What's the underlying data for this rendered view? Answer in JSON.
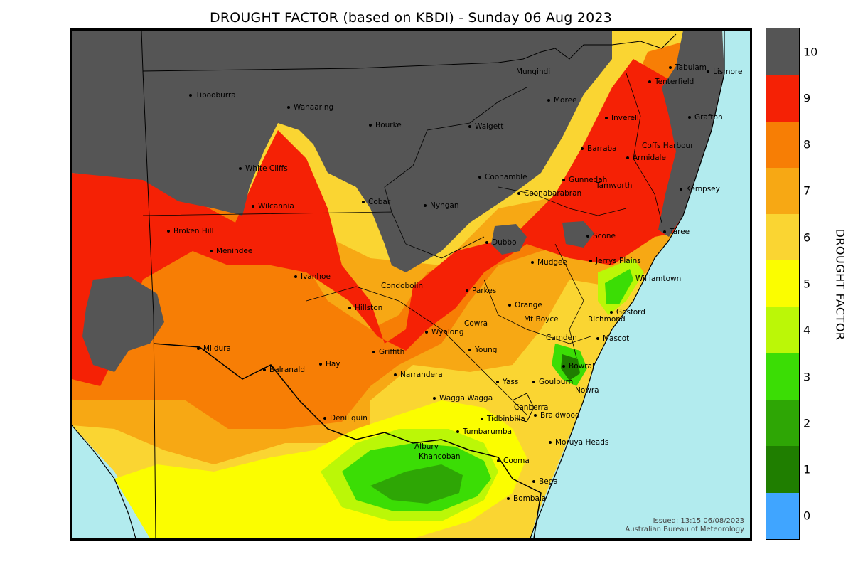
{
  "title": "DROUGHT FACTOR (based on KBDI) - Sunday 06 Aug 2023",
  "issued": "Issued: 13:15 06/08/2023",
  "issuer": "Australian Bureau of Meteorology",
  "legend": {
    "title": "DROUGHT FACTOR",
    "levels": [
      {
        "label": "10",
        "color": "#555555"
      },
      {
        "label": "9",
        "color": "#f52105"
      },
      {
        "label": "8",
        "color": "#f77e05"
      },
      {
        "label": "7",
        "color": "#f7a814"
      },
      {
        "label": "6",
        "color": "#fad532"
      },
      {
        "label": "5",
        "color": "#fbfd00"
      },
      {
        "label": "4",
        "color": "#bbf707"
      },
      {
        "label": "3",
        "color": "#3bdd05"
      },
      {
        "label": "2",
        "color": "#2ea605"
      },
      {
        "label": "1",
        "color": "#1f7e00"
      },
      {
        "label": "0",
        "color": "#40a5ff"
      }
    ]
  },
  "colors": {
    "ocean": "#b2ebee",
    "border": "#000000"
  },
  "places": [
    {
      "name": "Tibooburra"
    },
    {
      "name": "Wanaaring"
    },
    {
      "name": "Bourke"
    },
    {
      "name": "Mungindi"
    },
    {
      "name": "Moree"
    },
    {
      "name": "Walgett"
    },
    {
      "name": "Tabulam"
    },
    {
      "name": "Lismore"
    },
    {
      "name": "Tenterfield"
    },
    {
      "name": "Grafton"
    },
    {
      "name": "Inverell"
    },
    {
      "name": "Coffs Harbour"
    },
    {
      "name": "Barraba"
    },
    {
      "name": "Armidale"
    },
    {
      "name": "White Cliffs"
    },
    {
      "name": "Coonamble"
    },
    {
      "name": "Gunnedah"
    },
    {
      "name": "Tamworth"
    },
    {
      "name": "Kempsey"
    },
    {
      "name": "Coonabarabran"
    },
    {
      "name": "Cobar"
    },
    {
      "name": "Nyngan"
    },
    {
      "name": "Wilcannia"
    },
    {
      "name": "Broken Hill"
    },
    {
      "name": "Menindee"
    },
    {
      "name": "Dubbo"
    },
    {
      "name": "Scone"
    },
    {
      "name": "Taree"
    },
    {
      "name": "Mudgee"
    },
    {
      "name": "Jerrys Plains"
    },
    {
      "name": "Williamtown"
    },
    {
      "name": "Ivanhoe"
    },
    {
      "name": "Condobolin"
    },
    {
      "name": "Parkes"
    },
    {
      "name": "Orange"
    },
    {
      "name": "Hillston"
    },
    {
      "name": "Gosford"
    },
    {
      "name": "Mt Boyce"
    },
    {
      "name": "Richmond"
    },
    {
      "name": "Cowra"
    },
    {
      "name": "Wyalong"
    },
    {
      "name": "Camden"
    },
    {
      "name": "Mascot"
    },
    {
      "name": "Mildura"
    },
    {
      "name": "Griffith"
    },
    {
      "name": "Young"
    },
    {
      "name": "Balranald"
    },
    {
      "name": "Hay"
    },
    {
      "name": "Narrandera"
    },
    {
      "name": "Yass"
    },
    {
      "name": "Goulburn"
    },
    {
      "name": "Bowral"
    },
    {
      "name": "Nowra"
    },
    {
      "name": "Wagga Wagga"
    },
    {
      "name": "Canberra"
    },
    {
      "name": "Braidwood"
    },
    {
      "name": "Deniliquin"
    },
    {
      "name": "Tidbinbilla"
    },
    {
      "name": "Tumbarumba"
    },
    {
      "name": "Moruya Heads"
    },
    {
      "name": "Albury"
    },
    {
      "name": "Khancoban"
    },
    {
      "name": "Cooma"
    },
    {
      "name": "Bega"
    },
    {
      "name": "Bombala"
    }
  ]
}
